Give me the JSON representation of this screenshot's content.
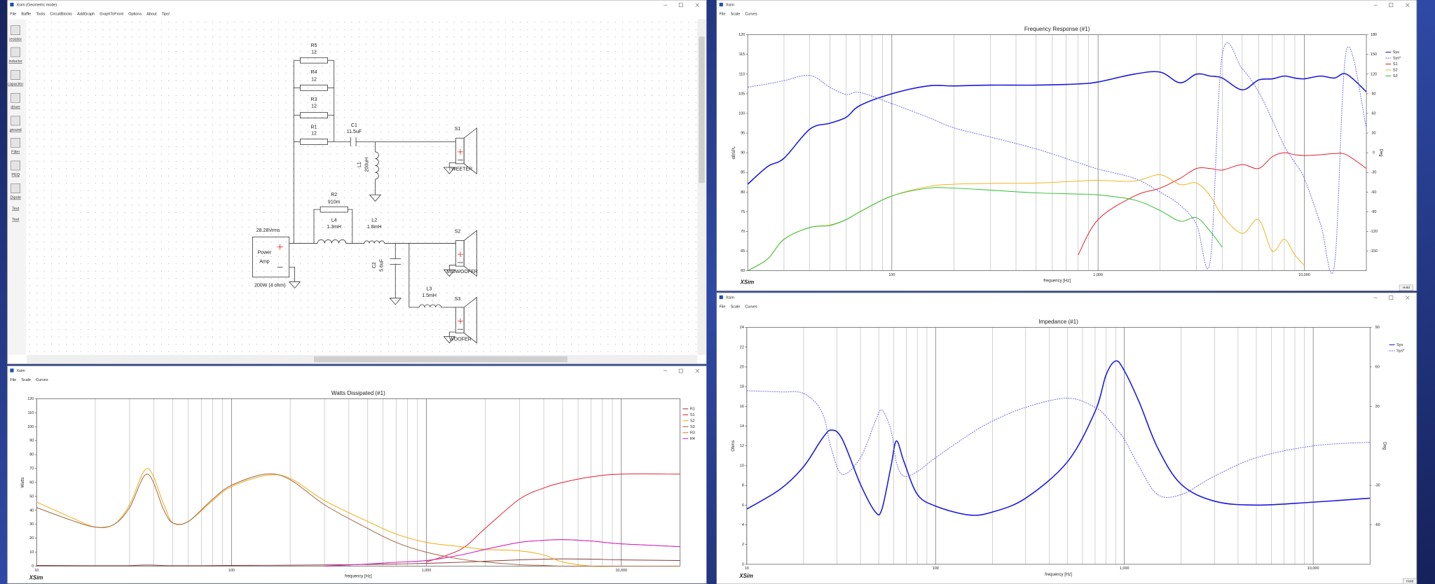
{
  "windows": [
    {
      "title": "Xsim (Geometric mode)",
      "menu": [
        "File",
        "Baffle",
        "Tools",
        "CircuitBlocks",
        "AddGraph",
        "GraphToFront",
        "Options",
        "About",
        "Tips!"
      ]
    },
    {
      "title": "Xsim",
      "menu": [
        "File",
        "Scale",
        "Curves"
      ]
    },
    {
      "title": "Xsim",
      "menu": [
        "File",
        "Scale",
        "Curves"
      ]
    },
    {
      "title": "Xsim",
      "menu": [
        "File",
        "Scale",
        "Curves"
      ]
    }
  ],
  "toolbar": [
    "resistor",
    "inductor",
    "capacitor",
    "driver",
    "ground",
    "Filter",
    "PEQ",
    "Dipole",
    "Text",
    "Tool"
  ],
  "schematic": {
    "parts": [
      {
        "ref": "R5",
        "value": "12"
      },
      {
        "ref": "R4",
        "value": "12"
      },
      {
        "ref": "R3",
        "value": "12"
      },
      {
        "ref": "R1",
        "value": "12"
      },
      {
        "ref": "C1",
        "value": "11.5uF"
      },
      {
        "ref": "L1",
        "value": "200uH"
      },
      {
        "ref": "R2",
        "value": "910m"
      },
      {
        "ref": "L4",
        "value": "1.3mH"
      },
      {
        "ref": "L2",
        "value": "1.8mH"
      },
      {
        "ref": "C2",
        "value": "5.6uF"
      },
      {
        "ref": "L3",
        "value": "1.5mH"
      }
    ],
    "drivers": [
      {
        "ref": "S1",
        "label": "TWEETER"
      },
      {
        "ref": "S2",
        "label": "MIDWOOFER"
      },
      {
        "ref": "S3",
        "label": "WOOFER"
      }
    ],
    "amp": {
      "voltage": "28.28Vrms",
      "lines": [
        "Power",
        "Amp"
      ],
      "rating": "200W (4 ohm)"
    }
  },
  "chart_data": [
    {
      "type": "line",
      "title": "Watts Dissipated (#1)",
      "x_label": "frequency [Hz]",
      "y_label": "Watts",
      "brand": "XSim",
      "xscale": "log",
      "grid": "x",
      "legend": "right",
      "xlim": [
        10,
        20000
      ],
      "xticks": [
        10,
        100,
        {
          "value": 1000,
          "label": "1,000"
        },
        {
          "value": 10000,
          "label": "10,000"
        }
      ],
      "xminor": [
        20,
        30,
        40,
        50,
        60,
        70,
        80,
        90,
        200,
        300,
        400,
        500,
        600,
        700,
        800,
        900,
        2000,
        3000,
        4000,
        5000,
        6000,
        7000,
        8000,
        9000
      ],
      "ylim": [
        0,
        120
      ],
      "yticks": [
        0,
        10,
        20,
        30,
        40,
        50,
        60,
        70,
        80,
        90,
        100,
        110,
        120
      ],
      "x": [
        10,
        15,
        20,
        25,
        30,
        37,
        45,
        50,
        60,
        80,
        100,
        150,
        200,
        300,
        500,
        700,
        1000,
        1500,
        2000,
        3000,
        4000,
        5000,
        7000,
        10000,
        20000
      ],
      "series": [
        {
          "name": "R1",
          "color": "#8b3a3a",
          "values": [
            0.5,
            0.4,
            0.3,
            0.3,
            0.4,
            0.8,
            0.4,
            0.3,
            0.3,
            0.4,
            0.5,
            0.6,
            0.7,
            0.9,
            1.2,
            1.5,
            2,
            2.8,
            3.5,
            4.5,
            5,
            5.2,
            5,
            4.5,
            4
          ]
        },
        {
          "name": "S1",
          "color": "#e3202c",
          "values": [
            null,
            null,
            null,
            null,
            null,
            null,
            null,
            null,
            null,
            null,
            null,
            null,
            null,
            null,
            null,
            null,
            3,
            12,
            27,
            48,
            56,
            60,
            64,
            66,
            66
          ]
        },
        {
          "name": "S2",
          "color": "#f0aa10",
          "values": [
            46,
            35,
            28,
            30,
            44,
            70,
            44,
            31,
            32,
            47,
            57,
            65,
            63,
            47,
            32,
            23,
            17,
            14,
            12,
            11,
            8,
            3,
            0,
            0,
            0
          ]
        },
        {
          "name": "S3",
          "color": "#a0653e",
          "values": [
            42,
            33,
            28,
            30,
            42,
            66,
            40,
            31,
            32,
            48,
            58,
            66,
            62,
            44,
            27,
            17,
            10,
            5,
            3,
            1,
            0.5,
            0,
            0,
            0,
            0
          ]
        },
        {
          "name": "R3",
          "color": "#e07830",
          "values": [
            null,
            null,
            null,
            null,
            null,
            null,
            null,
            null,
            null,
            null,
            null,
            null,
            null,
            0,
            1.5,
            2.8,
            4,
            8,
            12,
            17,
            18.5,
            19,
            18,
            16,
            14
          ]
        },
        {
          "name": "R4",
          "color": "#d21fd2",
          "values": [
            null,
            null,
            null,
            null,
            null,
            null,
            null,
            null,
            null,
            null,
            null,
            null,
            null,
            0,
            1.5,
            2.8,
            4,
            8,
            12,
            17,
            18.5,
            19,
            18,
            16,
            14
          ]
        }
      ]
    },
    {
      "type": "line",
      "title": "Frequency Response (#1)",
      "x_label": "frequency [Hz]",
      "y_label": "dBSPL",
      "y2_label": "Deg",
      "brand": "XSim",
      "hold_button": "Hold",
      "xscale": "log",
      "grid": "x",
      "legend": "right",
      "xlim": [
        20,
        20000
      ],
      "xticks": [
        100,
        {
          "value": 1000,
          "label": "1,000"
        },
        {
          "value": 10000,
          "label": "10,000"
        }
      ],
      "xminor": [
        30,
        40,
        50,
        60,
        70,
        80,
        90,
        200,
        300,
        400,
        500,
        600,
        700,
        800,
        900,
        2000,
        3000,
        4000,
        5000,
        6000,
        7000,
        8000,
        9000
      ],
      "ylim": [
        60,
        120
      ],
      "yticks": [
        60,
        65,
        70,
        75,
        80,
        85,
        90,
        95,
        100,
        105,
        110,
        115,
        120
      ],
      "y2lim": [
        -180,
        180
      ],
      "y2ticks": [
        -150,
        -120,
        -90,
        -60,
        -30,
        0,
        30,
        60,
        90,
        120,
        150,
        180
      ],
      "x": [
        20,
        25,
        30,
        40,
        50,
        60,
        70,
        100,
        150,
        200,
        300,
        500,
        800,
        1000,
        1500,
        2000,
        2500,
        3000,
        3500,
        4000,
        5000,
        6000,
        7000,
        8000,
        9000,
        10000,
        12000,
        14000,
        16000,
        20000
      ],
      "series": [
        {
          "name": "Sys",
          "color": "#1a1adc",
          "width": 1.2,
          "values": [
            82,
            86.5,
            88.6,
            96,
            97.5,
            99,
            102,
            105,
            107,
            107,
            107.2,
            107.2,
            107.5,
            108,
            110,
            110.5,
            107.8,
            110,
            109.5,
            109,
            106,
            108.5,
            108.8,
            109.5,
            109,
            108.8,
            109.5,
            109,
            110,
            105.5
          ]
        },
        {
          "name": "Sys*",
          "color": "#6a6af0",
          "style": "dashed",
          "axis": "y2",
          "values": [
            100,
            105,
            110,
            118,
            100,
            89,
            92,
            75,
            54,
            38,
            24,
            6,
            -15,
            -25,
            -39,
            -60,
            -80,
            -109,
            -165,
            149,
            128,
            93,
            50,
            10,
            -15,
            -39,
            -109,
            -172,
            156,
            38
          ]
        },
        {
          "name": "S1",
          "color": "#e3202c",
          "values": [
            null,
            null,
            null,
            null,
            null,
            null,
            null,
            null,
            null,
            null,
            null,
            null,
            64,
            73,
            79,
            81,
            83.5,
            86,
            86,
            85.6,
            87,
            86,
            89,
            90,
            89.5,
            89.3,
            89.5,
            89.8,
            89.5,
            86
          ]
        },
        {
          "name": "S2",
          "color": "#f0b420",
          "values": [
            60,
            63,
            68,
            71,
            71.6,
            73,
            75,
            79,
            81.4,
            82,
            82.2,
            82.3,
            82.8,
            83,
            82.8,
            84.4,
            81.9,
            82.3,
            79,
            74,
            69.5,
            73,
            65,
            68,
            64,
            61.4,
            null,
            null,
            null,
            null
          ]
        },
        {
          "name": "S3",
          "color": "#2fbf2f",
          "values": [
            60,
            63,
            68,
            71,
            71.5,
            73,
            75,
            79,
            81,
            81,
            80.5,
            79.8,
            79.5,
            79.3,
            78,
            75.3,
            72.6,
            73.5,
            70,
            66,
            null,
            null,
            null,
            null,
            null,
            null,
            null,
            null,
            null,
            null
          ]
        }
      ]
    },
    {
      "type": "line",
      "title": "Impedance (#1)",
      "x_label": "frequency [Hz]",
      "y_label": "Ohms",
      "y2_label": "Deg",
      "brand": "XSim",
      "hold_button": "Hold",
      "xscale": "log",
      "grid": "x",
      "legend": "right",
      "xlim": [
        10,
        20000
      ],
      "xticks": [
        10,
        100,
        {
          "value": 1000,
          "label": "1,000"
        },
        {
          "value": 10000,
          "label": "10,000"
        }
      ],
      "xminor": [
        20,
        30,
        40,
        50,
        60,
        70,
        80,
        90,
        200,
        300,
        400,
        500,
        600,
        700,
        800,
        900,
        2000,
        3000,
        4000,
        5000,
        6000,
        7000,
        8000,
        9000
      ],
      "ylim": [
        0,
        24
      ],
      "yticks": [
        0,
        2,
        4,
        6,
        8,
        10,
        12,
        14,
        16,
        18,
        20,
        22,
        24
      ],
      "y2lim": [
        -90,
        90
      ],
      "y2ticks": [
        -60,
        -30,
        30,
        60,
        90
      ],
      "x": [
        10,
        15,
        20,
        25,
        28,
        32,
        40,
        48,
        52,
        58,
        62,
        68,
        80,
        100,
        150,
        200,
        300,
        500,
        700,
        800,
        900,
        1000,
        1200,
        1500,
        2000,
        3000,
        5000,
        10000,
        20000
      ],
      "series": [
        {
          "name": "Sys",
          "color": "#1a1adc",
          "width": 1.2,
          "values": [
            5.6,
            7.6,
            9.9,
            12.7,
            13.6,
            12.7,
            8.1,
            5.3,
            5.6,
            9.9,
            12.5,
            10.4,
            7.1,
            5.9,
            5.0,
            5.3,
            6.7,
            10.4,
            15.5,
            19.2,
            20.6,
            19.6,
            16.4,
            11.8,
            8.1,
            6.4,
            6.0,
            6.3,
            6.7
          ]
        },
        {
          "name": "Sys*",
          "color": "#6a6af0",
          "style": "dashed",
          "axis": "y2",
          "values": [
            41.9,
            41,
            39.8,
            25.8,
            -2,
            -21.6,
            -9,
            18.8,
            27.2,
            11.9,
            -12.6,
            -23,
            -19.5,
            -9,
            8.4,
            18.8,
            29.3,
            36.3,
            29.3,
            22.3,
            13.3,
            4.9,
            -16,
            -37,
            -37,
            -23,
            -9,
            0,
            2.8
          ]
        }
      ]
    }
  ]
}
